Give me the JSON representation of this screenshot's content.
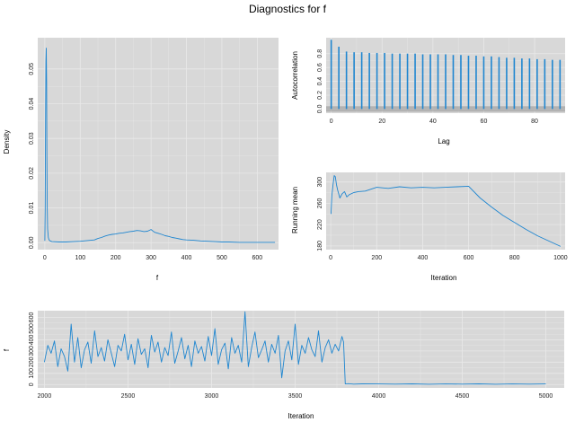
{
  "title": "Diagnostics for f",
  "colors": {
    "line": "#1f86d0",
    "panel": "#d8d8d8",
    "grid": "#e9e9e9",
    "ci_band": "#9a9a9a"
  },
  "chart_data": [
    {
      "id": "density",
      "type": "line",
      "xlabel": "f",
      "ylabel": "Density",
      "xlim": [
        -20,
        660
      ],
      "ylim": [
        -0.002,
        0.059
      ],
      "xticks": [
        0,
        100,
        200,
        300,
        400,
        500,
        600
      ],
      "yticks": [
        0.0,
        0.01,
        0.02,
        0.03,
        0.04,
        0.05
      ],
      "ytick_labels": [
        "0.00",
        "0.01",
        "0.02",
        "0.03",
        "0.04",
        "0.05"
      ],
      "x": [
        0,
        1,
        2,
        3,
        4,
        5,
        6,
        7,
        8,
        10,
        12,
        15,
        20,
        40,
        60,
        80,
        100,
        120,
        140,
        150,
        160,
        170,
        180,
        190,
        200,
        210,
        220,
        230,
        240,
        250,
        260,
        270,
        280,
        290,
        300,
        310,
        320,
        330,
        340,
        350,
        360,
        370,
        380,
        390,
        400,
        420,
        440,
        460,
        480,
        500,
        520,
        550,
        600,
        650
      ],
      "y": [
        0.0005,
        0.01,
        0.035,
        0.052,
        0.056,
        0.046,
        0.025,
        0.01,
        0.004,
        0.0015,
        0.0008,
        0.0005,
        0.0003,
        0.0002,
        0.0002,
        0.0003,
        0.0004,
        0.0006,
        0.0008,
        0.0012,
        0.0015,
        0.0019,
        0.0022,
        0.0024,
        0.0025,
        0.0027,
        0.0028,
        0.003,
        0.0032,
        0.0033,
        0.0035,
        0.0034,
        0.0032,
        0.0033,
        0.0038,
        0.003,
        0.0027,
        0.0024,
        0.002,
        0.0018,
        0.0015,
        0.0013,
        0.0011,
        0.0009,
        0.0008,
        0.0007,
        0.0005,
        0.0004,
        0.0003,
        0.0002,
        0.0002,
        0.0001,
        0.0001,
        0.0001
      ]
    },
    {
      "id": "autocorrelation",
      "type": "bar",
      "xlabel": "Lag",
      "ylabel": "Autocorrelation",
      "xlim": [
        -2,
        92
      ],
      "ylim": [
        -0.06,
        1.03
      ],
      "xticks": [
        0,
        20,
        40,
        60,
        80
      ],
      "yticks": [
        0.0,
        0.2,
        0.4,
        0.6,
        0.8
      ],
      "ytick_labels": [
        "0.0",
        "0.2",
        "0.4",
        "0.6",
        "0.8"
      ],
      "ci_band": [
        -0.04,
        0.04
      ],
      "lags": [
        0,
        3,
        6,
        9,
        12,
        15,
        18,
        21,
        24,
        27,
        30,
        33,
        36,
        39,
        42,
        45,
        48,
        51,
        54,
        57,
        60,
        63,
        66,
        69,
        72,
        75,
        78,
        81,
        84,
        87,
        90
      ],
      "values": [
        1.0,
        0.9,
        0.83,
        0.82,
        0.82,
        0.81,
        0.81,
        0.81,
        0.8,
        0.8,
        0.8,
        0.8,
        0.79,
        0.79,
        0.79,
        0.79,
        0.78,
        0.78,
        0.77,
        0.77,
        0.76,
        0.76,
        0.75,
        0.74,
        0.74,
        0.73,
        0.73,
        0.72,
        0.72,
        0.71,
        0.71
      ]
    },
    {
      "id": "running-mean",
      "type": "line",
      "xlabel": "Iteration",
      "ylabel": "Running mean",
      "xlim": [
        -20,
        1020
      ],
      "ylim": [
        173,
        318
      ],
      "xticks": [
        0,
        200,
        400,
        600,
        800,
        1000
      ],
      "yticks": [
        180,
        220,
        260,
        300
      ],
      "ytick_labels": [
        "180",
        "220",
        "260",
        "300"
      ],
      "x": [
        1,
        5,
        10,
        15,
        20,
        25,
        30,
        40,
        50,
        60,
        70,
        80,
        100,
        120,
        150,
        200,
        250,
        300,
        350,
        400,
        450,
        500,
        550,
        600,
        650,
        700,
        750,
        800,
        850,
        900,
        950,
        1000
      ],
      "y": [
        240,
        275,
        295,
        312,
        310,
        295,
        285,
        270,
        278,
        282,
        272,
        276,
        280,
        282,
        283,
        290,
        288,
        291,
        289,
        290,
        289,
        290,
        291,
        292,
        270,
        253,
        237,
        224,
        211,
        199,
        189,
        179
      ]
    },
    {
      "id": "trace",
      "type": "line",
      "xlabel": "Iteration",
      "ylabel": "f",
      "xlim": [
        1960,
        5110
      ],
      "ylim": [
        -30,
        660
      ],
      "xticks": [
        2000,
        2500,
        3000,
        3500,
        4000,
        4500,
        5000
      ],
      "yticks": [
        0,
        100,
        200,
        300,
        400,
        500,
        600
      ],
      "ytick_labels": [
        "0",
        "100",
        "200",
        "300",
        "400",
        "500",
        "600"
      ],
      "x": [
        2000,
        2020,
        2040,
        2060,
        2080,
        2100,
        2120,
        2140,
        2160,
        2180,
        2200,
        2220,
        2240,
        2260,
        2280,
        2300,
        2320,
        2340,
        2360,
        2380,
        2400,
        2420,
        2440,
        2460,
        2480,
        2500,
        2520,
        2540,
        2560,
        2580,
        2600,
        2620,
        2640,
        2660,
        2680,
        2700,
        2720,
        2740,
        2760,
        2780,
        2800,
        2820,
        2840,
        2860,
        2880,
        2900,
        2920,
        2940,
        2960,
        2980,
        3000,
        3020,
        3040,
        3060,
        3080,
        3100,
        3120,
        3140,
        3160,
        3180,
        3200,
        3220,
        3240,
        3260,
        3280,
        3300,
        3320,
        3340,
        3360,
        3380,
        3400,
        3420,
        3440,
        3460,
        3480,
        3500,
        3520,
        3540,
        3560,
        3580,
        3600,
        3620,
        3640,
        3660,
        3680,
        3700,
        3720,
        3740,
        3760,
        3780,
        3790,
        3800,
        3820,
        3850,
        3900,
        4000,
        4100,
        4200,
        4300,
        4400,
        4500,
        4600,
        4700,
        4800,
        4900,
        5000
      ],
      "y": [
        200,
        350,
        280,
        390,
        160,
        320,
        250,
        120,
        540,
        200,
        420,
        150,
        310,
        380,
        190,
        480,
        250,
        330,
        210,
        400,
        280,
        160,
        350,
        300,
        450,
        220,
        360,
        180,
        410,
        270,
        320,
        150,
        440,
        290,
        380,
        200,
        330,
        260,
        470,
        190,
        300,
        420,
        230,
        350,
        160,
        390,
        280,
        340,
        210,
        430,
        260,
        500,
        180,
        310,
        370,
        140,
        420,
        280,
        350,
        200,
        650,
        160,
        330,
        470,
        240,
        310,
        390,
        200,
        360,
        280,
        440,
        60,
        300,
        390,
        220,
        540,
        180,
        350,
        280,
        420,
        310,
        250,
        480,
        200,
        330,
        400,
        280,
        360,
        300,
        430,
        380,
        5,
        8,
        4,
        6,
        5,
        4,
        6,
        3,
        5,
        4,
        6,
        3,
        5,
        4,
        5
      ]
    }
  ]
}
